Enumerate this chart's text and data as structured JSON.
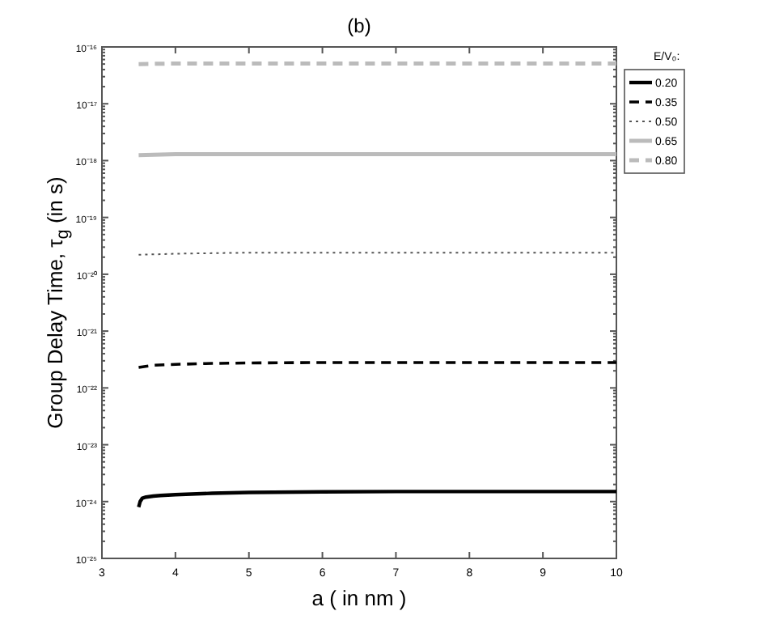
{
  "chart_data": {
    "type": "line",
    "title": "(b)",
    "xlabel": "a ( in nm )",
    "ylabel": "Group Delay Time, τ$_{g}$ (in s)",
    "legend_title": "E/V₀:",
    "log": "y",
    "grid": false,
    "legend": "top right",
    "xlim": [
      3,
      10
    ],
    "xticks": [
      3,
      4,
      5,
      6,
      7,
      8,
      9,
      10
    ],
    "ylim": [
      1e-25,
      1e-16
    ],
    "yticks": [
      {
        "value": 1e-25,
        "label": "10⁻²⁵"
      },
      {
        "value": 1e-24,
        "label": "10⁻²⁴"
      },
      {
        "value": 1e-23,
        "label": "10⁻²³"
      },
      {
        "value": 1e-22,
        "label": "10⁻²²"
      },
      {
        "value": 1e-21,
        "label": "10⁻²¹"
      },
      {
        "value": 1e-20,
        "label": "10⁻²⁰"
      },
      {
        "value": 1e-19,
        "label": "10⁻¹⁹"
      },
      {
        "value": 1e-18,
        "label": "10⁻¹⁸"
      },
      {
        "value": 1e-17,
        "label": "10⁻¹⁷"
      },
      {
        "value": 1e-16,
        "label": "10⁻¹⁶"
      }
    ],
    "series": [
      {
        "name": "0.20",
        "color": "#000000",
        "line_style": "solid",
        "x": [
          3.5,
          3.52,
          3.55,
          3.6,
          3.7,
          3.8,
          4,
          4.5,
          5,
          6,
          7,
          8,
          9,
          10
        ],
        "values": [
          8e-25,
          1e-24,
          1.15e-24,
          1.2e-24,
          1.25e-24,
          1.28e-24,
          1.32e-24,
          1.4e-24,
          1.45e-24,
          1.48e-24,
          1.5e-24,
          1.5e-24,
          1.5e-24,
          1.5e-24
        ]
      },
      {
        "name": "0.35",
        "color": "#000000",
        "line_style": "dashed",
        "x": [
          3.5,
          3.7,
          4,
          4.5,
          5,
          6,
          7,
          8,
          9,
          10
        ],
        "values": [
          2.3e-22,
          2.5e-22,
          2.6e-22,
          2.7e-22,
          2.75e-22,
          2.8e-22,
          2.8e-22,
          2.8e-22,
          2.8e-22,
          2.8e-22
        ]
      },
      {
        "name": "0.50",
        "color": "#555555",
        "line_style": "dotted",
        "x": [
          3.5,
          4,
          5,
          6,
          7,
          8,
          9,
          10
        ],
        "values": [
          2.2e-20,
          2.3e-20,
          2.4e-20,
          2.4e-20,
          2.4e-20,
          2.4e-20,
          2.4e-20,
          2.4e-20
        ]
      },
      {
        "name": "0.65",
        "color": "#bbbbbb",
        "line_style": "solid",
        "x": [
          3.5,
          4,
          5,
          6,
          7,
          8,
          9,
          10
        ],
        "values": [
          1.25e-18,
          1.3e-18,
          1.3e-18,
          1.3e-18,
          1.3e-18,
          1.3e-18,
          1.3e-18,
          1.3e-18
        ]
      },
      {
        "name": "0.80",
        "color": "#bbbbbb",
        "line_style": "dashed",
        "x": [
          3.5,
          4,
          5,
          6,
          7,
          8,
          9,
          10
        ],
        "values": [
          5e-17,
          5.1e-17,
          5.1e-17,
          5.1e-17,
          5.1e-17,
          5.1e-17,
          5.1e-17,
          5.1e-17
        ]
      }
    ]
  }
}
